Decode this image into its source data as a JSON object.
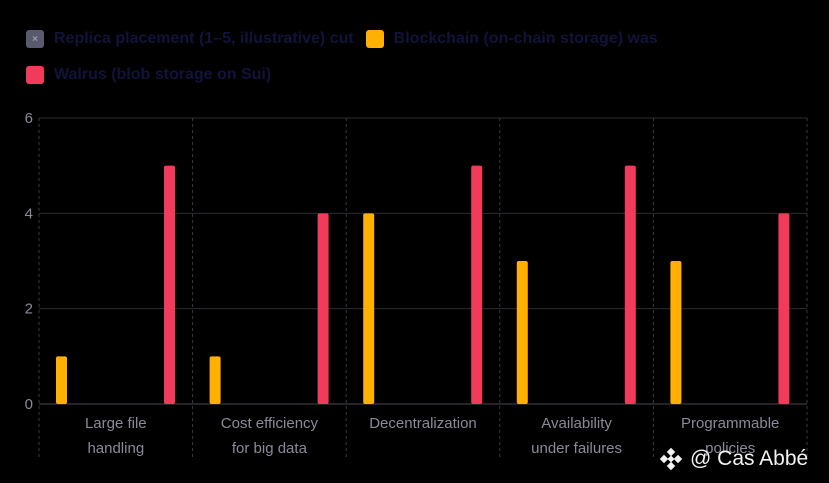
{
  "chart_data": {
    "type": "bar",
    "categories": [
      [
        "Large file",
        "handling"
      ],
      [
        "Cost efficiency",
        "for big data"
      ],
      [
        "Decentralization"
      ],
      [
        "Availability",
        "under failures"
      ],
      [
        "Programmable",
        "policies"
      ]
    ],
    "series": [
      {
        "name": "Replica placement (1–5, illustrative) cut",
        "color": "#5a5a6e",
        "values": [
          0,
          0,
          0,
          0,
          0
        ]
      },
      {
        "name": "Blockchain (on-chain storage) was",
        "color": "#ffb000",
        "values": [
          1,
          1,
          4,
          3,
          3
        ]
      },
      {
        "name": "Walrus (blob storage on Sui)",
        "color": "#f23a5a",
        "values": [
          5,
          4,
          5,
          5,
          4
        ]
      }
    ],
    "ylim": [
      0,
      6
    ],
    "yticks": [
      0,
      2,
      4,
      6
    ],
    "grid": true,
    "legend_position": "top"
  },
  "watermark": {
    "text": "@ Cas Abbé",
    "icon": "binance-logo-icon"
  }
}
